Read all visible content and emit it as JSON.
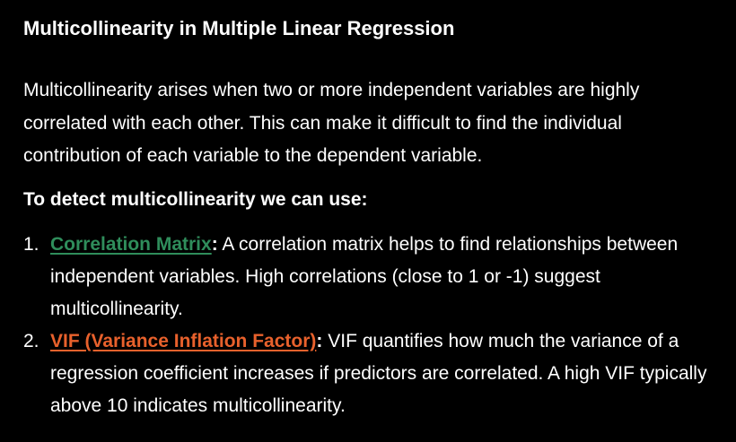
{
  "title": "Multicollinearity in Multiple Linear Regression",
  "intro": "Multicollinearity arises when two or more independent variables are highly correlated with each other. This can make it difficult to find the individual contribution of each variable to the dependent variable.",
  "detect_heading": "To detect multicollinearity we can use:",
  "methods": [
    {
      "number": "1.",
      "link": "Correlation Matrix",
      "separator": ":",
      "text": " A correlation matrix helps to find relationships between independent variables. High correlations (close to 1 or -1) suggest multicollinearity.",
      "link_color": "#2f8d5b"
    },
    {
      "number": "2.",
      "link": "VIF (Variance Inflation Factor)",
      "separator": ":",
      "text": " VIF quantifies how much the variance of a regression coefficient increases if predictors are correlated. A high VIF typically above 10 indicates multicollinearity.",
      "link_color": "#e8612c"
    }
  ]
}
